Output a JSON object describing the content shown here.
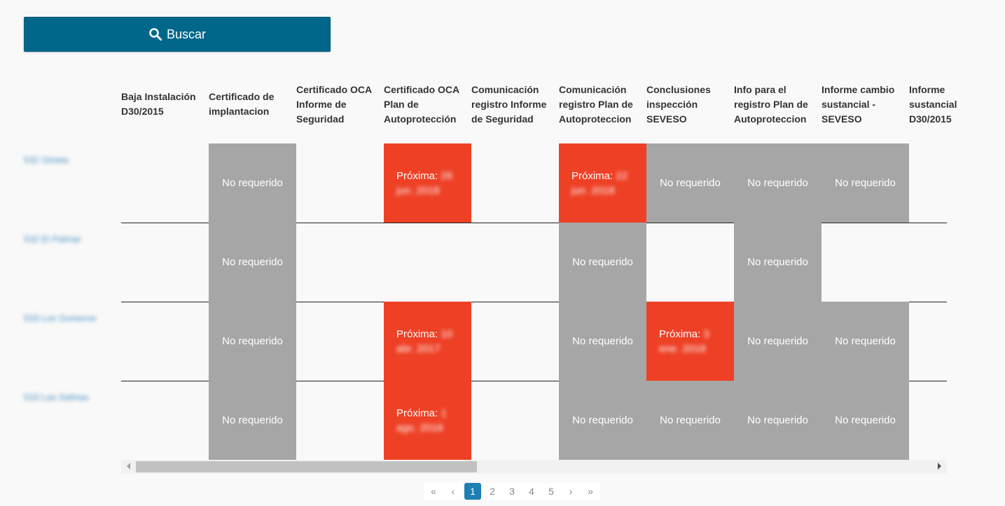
{
  "search": {
    "label": "Buscar"
  },
  "columns": [
    "Baja Instalación D30/2015",
    "Certificado de implantacion",
    "Certificado OCA Informe de Seguridad",
    "Certificado OCA Plan de Autoprotección",
    "Comunicación registro Informe de Seguridad",
    "Comunicación registro Plan de Autoproteccion",
    "Conclusiones inspección SEVESO",
    "Info para el registro Plan de Autoproteccion",
    "Informe cambio sustancial - SEVESO",
    "Informe sustancial D30/2015"
  ],
  "rows": [
    {
      "label": "532 Gineta",
      "cells": [
        {
          "status": ""
        },
        {
          "status": "No requerido"
        },
        {
          "status": ""
        },
        {
          "status": "Próxima:",
          "date": "26 jun. 2018"
        },
        {
          "status": ""
        },
        {
          "status": "Próxima:",
          "date": "22 jun. 2018"
        },
        {
          "status": "No requerido"
        },
        {
          "status": "No requerido"
        },
        {
          "status": "No requerido"
        },
        {
          "status": ""
        }
      ]
    },
    {
      "label": "532 El Palmar",
      "cells": [
        {
          "status": ""
        },
        {
          "status": "No requerido"
        },
        {
          "status": ""
        },
        {
          "status": ""
        },
        {
          "status": ""
        },
        {
          "status": "No requerido"
        },
        {
          "status": ""
        },
        {
          "status": "No requerido"
        },
        {
          "status": ""
        },
        {
          "status": ""
        }
      ]
    },
    {
      "label": "533 Los Gomeros",
      "cells": [
        {
          "status": ""
        },
        {
          "status": "No requerido"
        },
        {
          "status": ""
        },
        {
          "status": "Próxima:",
          "date": "10 abr. 2017"
        },
        {
          "status": ""
        },
        {
          "status": "No requerido"
        },
        {
          "status": "Próxima:",
          "date": "3 ene. 2018"
        },
        {
          "status": "No requerido"
        },
        {
          "status": "No requerido"
        },
        {
          "status": ""
        }
      ]
    },
    {
      "label": "533 Las Salinas",
      "cells": [
        {
          "status": ""
        },
        {
          "status": "No requerido"
        },
        {
          "status": ""
        },
        {
          "status": "Próxima:",
          "date": "1 ago. 2018"
        },
        {
          "status": ""
        },
        {
          "status": "No requerido"
        },
        {
          "status": "No requerido"
        },
        {
          "status": "No requerido"
        },
        {
          "status": "No requerido"
        },
        {
          "status": ""
        }
      ]
    }
  ],
  "pagination": {
    "first": "«",
    "prev": "‹",
    "pages": [
      "1",
      "2",
      "3",
      "4",
      "5"
    ],
    "current": "1",
    "next": "›",
    "last": "»"
  },
  "colors": {
    "button": "#00678a",
    "not_required": "#a6a6a6",
    "upcoming": "#ee4025",
    "row_link": "#4a90c2",
    "active_page": "#1f7fb5"
  }
}
